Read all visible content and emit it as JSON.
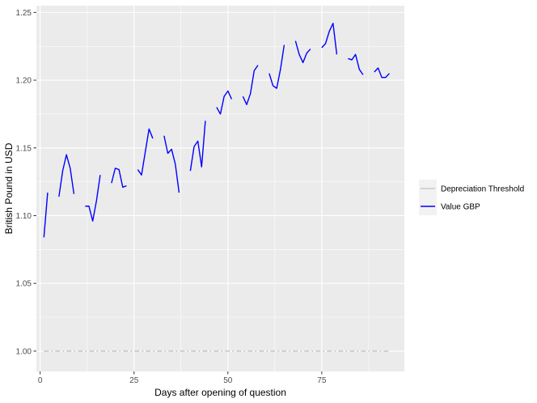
{
  "chart_data": {
    "type": "line",
    "xlabel": "Days after opening of question",
    "ylabel": "British Pound in USD",
    "xlim": [
      -1,
      97
    ],
    "ylim": [
      0.985,
      1.255
    ],
    "x_ticks": [
      0,
      25,
      50,
      75
    ],
    "x_tick_labels": [
      "0",
      "25",
      "50",
      "75"
    ],
    "y_ticks": [
      1.0,
      1.05,
      1.1,
      1.15,
      1.2,
      1.25
    ],
    "y_tick_labels": [
      "1.00",
      "1.05",
      "1.10",
      "1.15",
      "1.20",
      "1.25"
    ],
    "grid": true,
    "legend_position": "right",
    "series": [
      {
        "name": "Depreciation Threshold",
        "color": "#bebebe",
        "style": "dashed",
        "x": [
          1,
          93
        ],
        "y": [
          1.0,
          1.0
        ]
      },
      {
        "name": "Value GBP",
        "color": "#0000ff",
        "style": "solid",
        "segments": [
          {
            "x": [
              1,
              2
            ],
            "y": [
              1.084,
              1.117
            ]
          },
          {
            "x": [
              5,
              6,
              7,
              8,
              9
            ],
            "y": [
              1.114,
              1.133,
              1.145,
              1.135,
              1.116
            ]
          },
          {
            "x": [
              12,
              13,
              14,
              15,
              16
            ],
            "y": [
              1.107,
              1.107,
              1.096,
              1.111,
              1.13
            ]
          },
          {
            "x": [
              19,
              20,
              21,
              22,
              23
            ],
            "y": [
              1.124,
              1.135,
              1.134,
              1.121,
              1.122
            ]
          },
          {
            "x": [
              26,
              27,
              28,
              29,
              30
            ],
            "y": [
              1.134,
              1.13,
              1.147,
              1.164,
              1.157
            ]
          },
          {
            "x": [
              33,
              34,
              35,
              36,
              37
            ],
            "y": [
              1.159,
              1.146,
              1.149,
              1.138,
              1.117
            ]
          },
          {
            "x": [
              40,
              41,
              42,
              43,
              44
            ],
            "y": [
              1.133,
              1.151,
              1.155,
              1.136,
              1.17
            ]
          },
          {
            "x": [
              47,
              48,
              49,
              50,
              51
            ],
            "y": [
              1.18,
              1.175,
              1.188,
              1.192,
              1.186
            ]
          },
          {
            "x": [
              54,
              55,
              56,
              57,
              58
            ],
            "y": [
              1.188,
              1.182,
              1.19,
              1.207,
              1.211
            ]
          },
          {
            "x": [
              61,
              62,
              63,
              64,
              65
            ],
            "y": [
              1.205,
              1.196,
              1.194,
              1.208,
              1.226
            ]
          },
          {
            "x": [
              68,
              69,
              70,
              71,
              72
            ],
            "y": [
              1.229,
              1.219,
              1.213,
              1.22,
              1.223
            ]
          },
          {
            "x": [
              75,
              76,
              77,
              78,
              79
            ],
            "y": [
              1.224,
              1.227,
              1.236,
              1.242,
              1.219
            ]
          },
          {
            "x": [
              82,
              83,
              84,
              85,
              86
            ],
            "y": [
              1.216,
              1.215,
              1.219,
              1.208,
              1.204
            ]
          },
          {
            "x": [
              89,
              90,
              91,
              92,
              93
            ],
            "y": [
              1.206,
              1.209,
              1.202,
              1.202,
              1.205
            ]
          }
        ]
      }
    ]
  }
}
